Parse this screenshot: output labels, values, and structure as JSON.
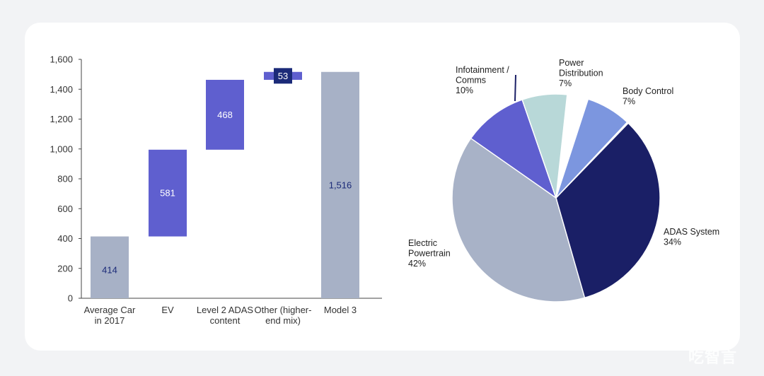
{
  "chart_data": [
    {
      "type": "bar",
      "subtype": "waterfall",
      "categories": [
        [
          "Average Car",
          "in 2017"
        ],
        [
          "EV"
        ],
        [
          "Level 2 ADAS",
          "content"
        ],
        [
          "Other (higher-",
          "end mix)"
        ],
        [
          "Model 3"
        ]
      ],
      "values": [
        414,
        581,
        468,
        53,
        1516
      ],
      "value_labels": [
        "414",
        "581",
        "468",
        "53",
        "1,516"
      ],
      "bases": [
        0,
        414,
        995,
        1463,
        0
      ],
      "bar_colors": [
        "#a7b1c6",
        "#5f5fcf",
        "#5f5fcf",
        "#5f5fcf",
        "#a7b1c6"
      ],
      "label_colors": [
        "#1b2a78",
        "#ffffff",
        "#ffffff",
        "#ffffff",
        "#1b2a78"
      ],
      "ylim": [
        0,
        1600
      ],
      "yticks": [
        "0",
        "200",
        "400",
        "600",
        "800",
        "1,000",
        "1,200",
        "1,400",
        "1,600"
      ],
      "yticks_values": [
        0,
        200,
        400,
        600,
        800,
        1000,
        1200,
        1400,
        1600
      ],
      "grid": false
    },
    {
      "type": "pie",
      "slices": [
        {
          "label": [
            "ADAS System"
          ],
          "pct_label": "34%",
          "value": 34,
          "color": "#1a1f66"
        },
        {
          "label": [
            "Electric",
            "Powertrain"
          ],
          "pct_label": "42%",
          "value": 42,
          "color": "#a8b2c7"
        },
        {
          "label": [
            "Infotainment /",
            "Comms"
          ],
          "pct_label": "10%",
          "value": 10,
          "color": "#5f5fcf"
        },
        {
          "label": [
            "Power",
            "Distribution"
          ],
          "pct_label": "7%",
          "value": 7,
          "color": "#b8d8d8"
        },
        {
          "label": [
            "Body Control"
          ],
          "pct_label": "7%",
          "value": 7,
          "color": "#7c96df"
        }
      ]
    }
  ],
  "watermark": "吃智言"
}
